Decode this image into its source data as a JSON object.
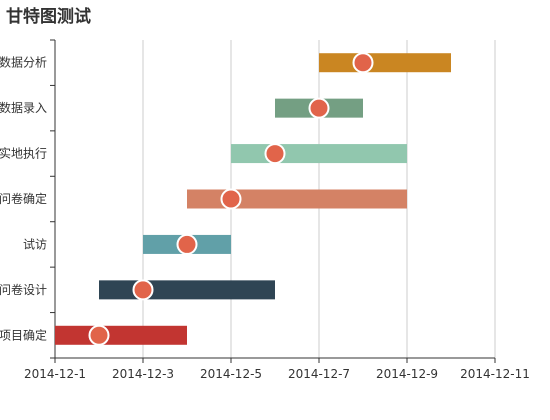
{
  "chart_data": {
    "type": "bar",
    "subtype": "gantt",
    "title": "甘特图测试",
    "tasks": [
      {
        "name": "项目确定",
        "start": "2014-12-01",
        "end": "2014-12-04",
        "milestone": "2014-12-02",
        "color": "#c23531"
      },
      {
        "name": "问卷设计",
        "start": "2014-12-02",
        "end": "2014-12-06",
        "milestone": "2014-12-03",
        "color": "#2f4554"
      },
      {
        "name": "试访",
        "start": "2014-12-03",
        "end": "2014-12-05",
        "milestone": "2014-12-04",
        "color": "#61a0a8"
      },
      {
        "name": "问卷确定",
        "start": "2014-12-04",
        "end": "2014-12-09",
        "milestone": "2014-12-05",
        "color": "#d48265"
      },
      {
        "name": "实地执行",
        "start": "2014-12-05",
        "end": "2014-12-09",
        "milestone": "2014-12-06",
        "color": "#91c7ae"
      },
      {
        "name": "数据录入",
        "start": "2014-12-06",
        "end": "2014-12-08",
        "milestone": "2014-12-07",
        "color": "#749f83"
      },
      {
        "name": "数据分析",
        "start": "2014-12-07",
        "end": "2014-12-10",
        "milestone": "2014-12-08",
        "color": "#ca8622"
      }
    ],
    "x_ticks": [
      "2014-12-1",
      "2014-12-3",
      "2014-12-5",
      "2014-12-7",
      "2014-12-9",
      "2014-12-11"
    ],
    "xlim": [
      "2014-12-01",
      "2014-12-11"
    ],
    "milestone_color": "#e1644a",
    "grid": "vertical",
    "legend": "none"
  }
}
